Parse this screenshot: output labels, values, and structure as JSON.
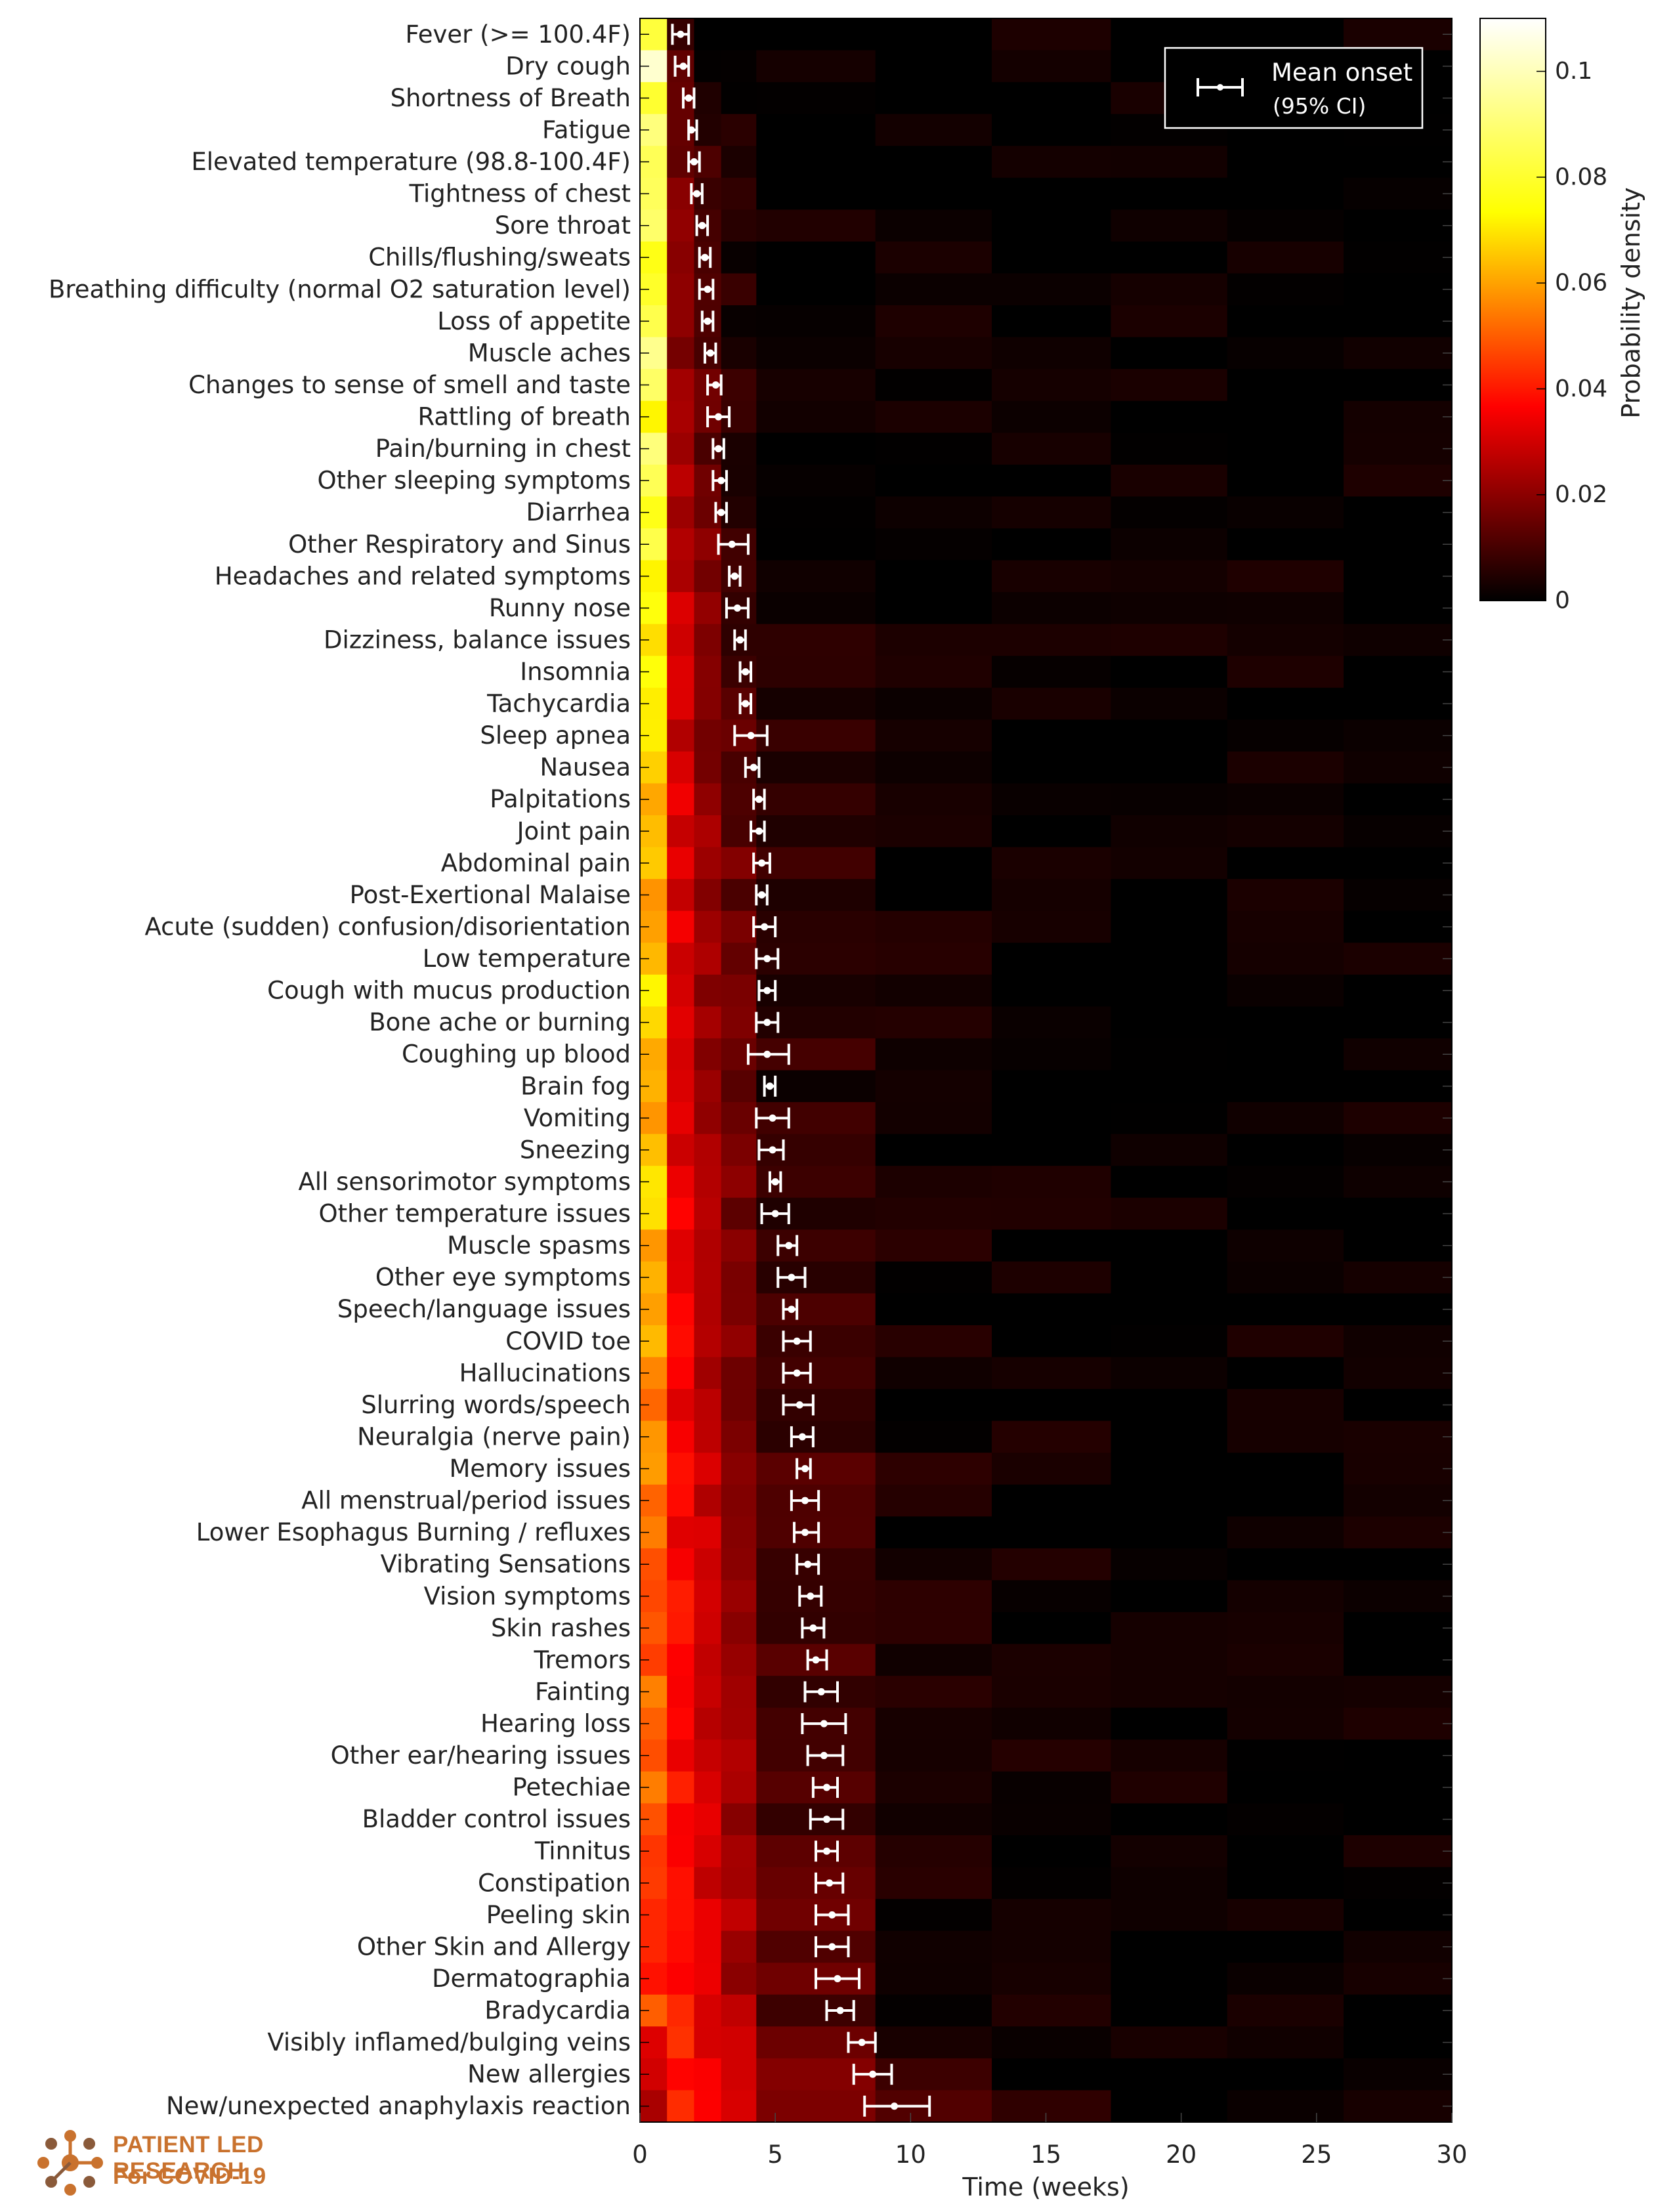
{
  "chart_data": {
    "type": "heatmap",
    "xlabel": "Time (weeks)",
    "xlim": [
      0,
      30
    ],
    "xticks": [
      0,
      5,
      10,
      15,
      20,
      25,
      30
    ],
    "legend": {
      "label_main": "Mean onset",
      "label_sub": "(95% CI)",
      "placement": "top-right"
    },
    "colorbar": {
      "label": "Probability density",
      "range": [
        0,
        0.11
      ],
      "ticks": [
        0,
        0.02,
        0.04,
        0.06,
        0.08,
        0.1
      ],
      "tick_labels": [
        "0",
        "0.02",
        "0.04",
        "0.06",
        "0.08",
        "0.1"
      ]
    },
    "time_bins_weeks": [
      0,
      1,
      2,
      3,
      4.3,
      8.7,
      13,
      17.4,
      21.7,
      26,
      30
    ],
    "colormap": [
      "#000000",
      "#ff0000",
      "#ffff00",
      "#ffffff"
    ],
    "symptoms": [
      {
        "name": "Fever (>= 100.4F)",
        "mean": 1.5,
        "ci": [
          1.2,
          1.8
        ]
      },
      {
        "name": "Dry cough",
        "mean": 1.6,
        "ci": [
          1.3,
          1.8
        ]
      },
      {
        "name": "Shortness of Breath",
        "mean": 1.8,
        "ci": [
          1.6,
          2.0
        ]
      },
      {
        "name": "Fatigue",
        "mean": 1.9,
        "ci": [
          1.8,
          2.1
        ]
      },
      {
        "name": "Elevated temperature (98.8-100.4F)",
        "mean": 2.0,
        "ci": [
          1.8,
          2.2
        ]
      },
      {
        "name": "Tightness of chest",
        "mean": 2.1,
        "ci": [
          1.9,
          2.3
        ]
      },
      {
        "name": "Sore throat",
        "mean": 2.3,
        "ci": [
          2.1,
          2.5
        ]
      },
      {
        "name": "Chills/flushing/sweats",
        "mean": 2.4,
        "ci": [
          2.2,
          2.6
        ]
      },
      {
        "name": "Breathing difficulty (normal O2 saturation level)",
        "mean": 2.5,
        "ci": [
          2.2,
          2.7
        ]
      },
      {
        "name": "Loss of appetite",
        "mean": 2.5,
        "ci": [
          2.3,
          2.7
        ]
      },
      {
        "name": "Muscle aches",
        "mean": 2.6,
        "ci": [
          2.4,
          2.8
        ]
      },
      {
        "name": "Changes to sense of smell and taste",
        "mean": 2.8,
        "ci": [
          2.5,
          3.0
        ]
      },
      {
        "name": "Rattling of breath",
        "mean": 2.9,
        "ci": [
          2.5,
          3.3
        ]
      },
      {
        "name": "Pain/burning in chest",
        "mean": 2.9,
        "ci": [
          2.7,
          3.1
        ]
      },
      {
        "name": "Other sleeping symptoms",
        "mean": 3.0,
        "ci": [
          2.7,
          3.2
        ]
      },
      {
        "name": "Diarrhea",
        "mean": 3.0,
        "ci": [
          2.8,
          3.2
        ]
      },
      {
        "name": "Other Respiratory and Sinus",
        "mean": 3.4,
        "ci": [
          2.9,
          4.0
        ]
      },
      {
        "name": "Headaches and related symptoms",
        "mean": 3.5,
        "ci": [
          3.3,
          3.7
        ]
      },
      {
        "name": "Runny nose",
        "mean": 3.6,
        "ci": [
          3.2,
          4.0
        ]
      },
      {
        "name": "Dizziness, balance issues",
        "mean": 3.7,
        "ci": [
          3.5,
          3.9
        ]
      },
      {
        "name": "Insomnia",
        "mean": 3.9,
        "ci": [
          3.7,
          4.1
        ]
      },
      {
        "name": "Tachycardia",
        "mean": 3.9,
        "ci": [
          3.7,
          4.1
        ]
      },
      {
        "name": "Sleep apnea",
        "mean": 4.1,
        "ci": [
          3.5,
          4.7
        ]
      },
      {
        "name": "Nausea",
        "mean": 4.2,
        "ci": [
          3.9,
          4.4
        ]
      },
      {
        "name": "Palpitations",
        "mean": 4.4,
        "ci": [
          4.2,
          4.6
        ]
      },
      {
        "name": "Joint pain",
        "mean": 4.4,
        "ci": [
          4.1,
          4.6
        ]
      },
      {
        "name": "Abdominal pain",
        "mean": 4.5,
        "ci": [
          4.2,
          4.8
        ]
      },
      {
        "name": "Post-Exertional Malaise",
        "mean": 4.5,
        "ci": [
          4.3,
          4.7
        ]
      },
      {
        "name": "Acute (sudden) confusion/disorientation",
        "mean": 4.6,
        "ci": [
          4.2,
          5.0
        ]
      },
      {
        "name": "Low temperature",
        "mean": 4.7,
        "ci": [
          4.3,
          5.1
        ]
      },
      {
        "name": "Cough with mucus production",
        "mean": 4.7,
        "ci": [
          4.4,
          5.0
        ]
      },
      {
        "name": "Bone ache or burning",
        "mean": 4.7,
        "ci": [
          4.3,
          5.1
        ]
      },
      {
        "name": "Coughing up blood",
        "mean": 4.7,
        "ci": [
          4.0,
          5.5
        ]
      },
      {
        "name": "Brain fog",
        "mean": 4.8,
        "ci": [
          4.6,
          5.0
        ]
      },
      {
        "name": "Vomiting",
        "mean": 4.9,
        "ci": [
          4.3,
          5.5
        ]
      },
      {
        "name": "Sneezing",
        "mean": 4.9,
        "ci": [
          4.4,
          5.3
        ]
      },
      {
        "name": "All sensorimotor symptoms",
        "mean": 5.0,
        "ci": [
          4.8,
          5.2
        ]
      },
      {
        "name": "Other temperature issues",
        "mean": 5.0,
        "ci": [
          4.5,
          5.5
        ]
      },
      {
        "name": "Muscle spasms",
        "mean": 5.5,
        "ci": [
          5.1,
          5.8
        ]
      },
      {
        "name": "Other eye symptoms",
        "mean": 5.6,
        "ci": [
          5.1,
          6.1
        ]
      },
      {
        "name": "Speech/language issues",
        "mean": 5.6,
        "ci": [
          5.3,
          5.8
        ]
      },
      {
        "name": "COVID toe",
        "mean": 5.8,
        "ci": [
          5.3,
          6.3
        ]
      },
      {
        "name": "Hallucinations",
        "mean": 5.8,
        "ci": [
          5.3,
          6.3
        ]
      },
      {
        "name": "Slurring words/speech",
        "mean": 5.9,
        "ci": [
          5.3,
          6.4
        ]
      },
      {
        "name": "Neuralgia (nerve pain)",
        "mean": 6.0,
        "ci": [
          5.6,
          6.4
        ]
      },
      {
        "name": "Memory issues",
        "mean": 6.1,
        "ci": [
          5.8,
          6.3
        ]
      },
      {
        "name": "All menstrual/period issues",
        "mean": 6.1,
        "ci": [
          5.6,
          6.6
        ]
      },
      {
        "name": "Lower Esophagus Burning / refluxes",
        "mean": 6.1,
        "ci": [
          5.7,
          6.6
        ]
      },
      {
        "name": "Vibrating Sensations",
        "mean": 6.2,
        "ci": [
          5.8,
          6.6
        ]
      },
      {
        "name": "Vision symptoms",
        "mean": 6.3,
        "ci": [
          5.9,
          6.7
        ]
      },
      {
        "name": "Skin rashes",
        "mean": 6.4,
        "ci": [
          6.0,
          6.8
        ]
      },
      {
        "name": "Tremors",
        "mean": 6.5,
        "ci": [
          6.2,
          6.9
        ]
      },
      {
        "name": "Fainting",
        "mean": 6.7,
        "ci": [
          6.1,
          7.3
        ]
      },
      {
        "name": "Hearing loss",
        "mean": 6.8,
        "ci": [
          6.0,
          7.6
        ]
      },
      {
        "name": "Other ear/hearing issues",
        "mean": 6.8,
        "ci": [
          6.2,
          7.5
        ]
      },
      {
        "name": "Petechiae",
        "mean": 6.9,
        "ci": [
          6.4,
          7.3
        ]
      },
      {
        "name": "Bladder control issues",
        "mean": 6.9,
        "ci": [
          6.3,
          7.5
        ]
      },
      {
        "name": "Tinnitus",
        "mean": 6.9,
        "ci": [
          6.5,
          7.3
        ]
      },
      {
        "name": "Constipation",
        "mean": 7.0,
        "ci": [
          6.5,
          7.5
        ]
      },
      {
        "name": "Peeling skin",
        "mean": 7.1,
        "ci": [
          6.5,
          7.7
        ]
      },
      {
        "name": "Other Skin and Allergy",
        "mean": 7.1,
        "ci": [
          6.5,
          7.7
        ]
      },
      {
        "name": "Dermatographia",
        "mean": 7.3,
        "ci": [
          6.5,
          8.1
        ]
      },
      {
        "name": "Bradycardia",
        "mean": 7.4,
        "ci": [
          6.9,
          7.9
        ]
      },
      {
        "name": "Visibly inflamed/bulging veins",
        "mean": 8.2,
        "ci": [
          7.7,
          8.7
        ]
      },
      {
        "name": "New allergies",
        "mean": 8.6,
        "ci": [
          7.9,
          9.3
        ]
      },
      {
        "name": "New/unexpected anaphylaxis reaction",
        "mean": 9.4,
        "ci": [
          8.3,
          10.7
        ]
      }
    ]
  },
  "branding": {
    "line1": "PATIENT LED RESEARCH",
    "line2": "For COVID-19"
  }
}
